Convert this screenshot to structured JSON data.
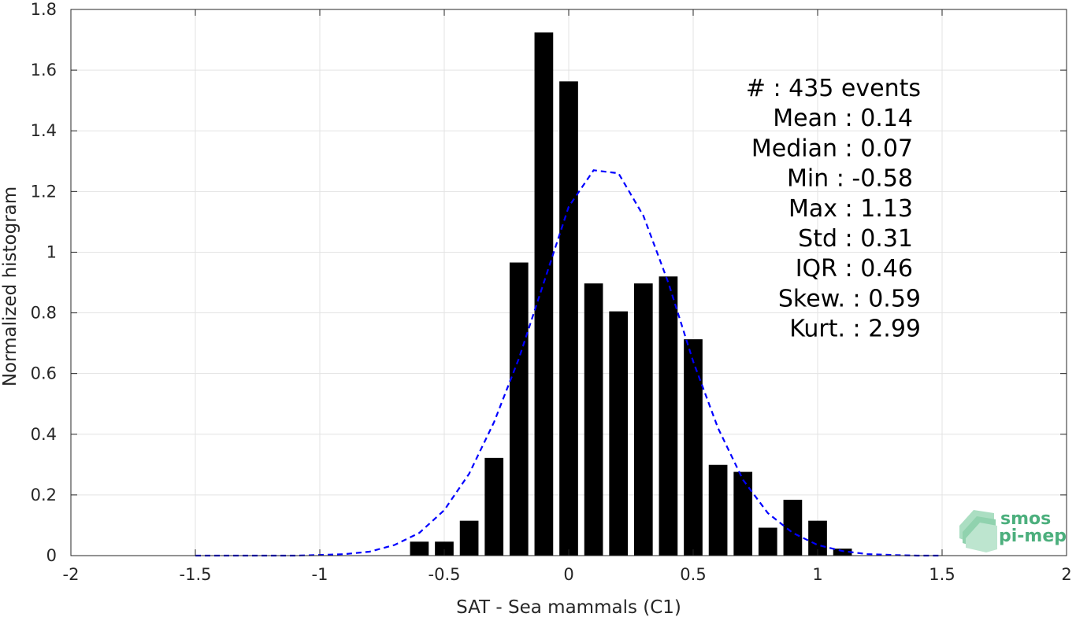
{
  "chart_data": {
    "type": "bar",
    "xlabel": "SAT - Sea mammals (C1)",
    "ylabel": "Normalized histogram",
    "xlim": [
      -2,
      2
    ],
    "ylim": [
      0,
      1.8
    ],
    "grid": true,
    "xticks": [
      {
        "value": -2,
        "label": "-2"
      },
      {
        "value": -1.5,
        "label": "-1.5"
      },
      {
        "value": -1,
        "label": "-1"
      },
      {
        "value": -0.5,
        "label": "-0.5"
      },
      {
        "value": 0,
        "label": "0"
      },
      {
        "value": 0.5,
        "label": "0.5"
      },
      {
        "value": 1,
        "label": "1"
      },
      {
        "value": 1.5,
        "label": "1.5"
      },
      {
        "value": 2,
        "label": "2"
      }
    ],
    "yticks": [
      {
        "value": 0,
        "label": "0"
      },
      {
        "value": 0.2,
        "label": "0.2"
      },
      {
        "value": 0.4,
        "label": "0.4"
      },
      {
        "value": 0.6,
        "label": "0.6"
      },
      {
        "value": 0.8,
        "label": "0.8"
      },
      {
        "value": 1,
        "label": "1"
      },
      {
        "value": 1.2,
        "label": "1.2"
      },
      {
        "value": 1.4,
        "label": "1.4"
      },
      {
        "value": 1.6,
        "label": "1.6"
      },
      {
        "value": 1.8,
        "label": "1.8"
      }
    ],
    "bar_color": "#000000",
    "bar_width": 0.075,
    "bars": [
      {
        "x": -0.6,
        "y": 0.046
      },
      {
        "x": -0.5,
        "y": 0.046
      },
      {
        "x": -0.4,
        "y": 0.115
      },
      {
        "x": -0.3,
        "y": 0.322
      },
      {
        "x": -0.2,
        "y": 0.966
      },
      {
        "x": -0.1,
        "y": 1.724
      },
      {
        "x": 0.0,
        "y": 1.563
      },
      {
        "x": 0.1,
        "y": 0.897
      },
      {
        "x": 0.2,
        "y": 0.805
      },
      {
        "x": 0.3,
        "y": 0.897
      },
      {
        "x": 0.4,
        "y": 0.92
      },
      {
        "x": 0.5,
        "y": 0.713
      },
      {
        "x": 0.6,
        "y": 0.299
      },
      {
        "x": 0.7,
        "y": 0.276
      },
      {
        "x": 0.8,
        "y": 0.092
      },
      {
        "x": 0.9,
        "y": 0.184
      },
      {
        "x": 1.0,
        "y": 0.115
      },
      {
        "x": 1.1,
        "y": 0.023
      }
    ],
    "fit_curve": {
      "color": "#0000ff",
      "style": "dashed",
      "points": [
        [
          -1.5,
          0.0
        ],
        [
          -1.4,
          0.0
        ],
        [
          -1.3,
          0.0
        ],
        [
          -1.2,
          0.0
        ],
        [
          -1.1,
          0.0
        ],
        [
          -1.0,
          0.002
        ],
        [
          -0.9,
          0.005
        ],
        [
          -0.8,
          0.013
        ],
        [
          -0.7,
          0.035
        ],
        [
          -0.6,
          0.075
        ],
        [
          -0.5,
          0.15
        ],
        [
          -0.4,
          0.27
        ],
        [
          -0.3,
          0.44
        ],
        [
          -0.2,
          0.65
        ],
        [
          -0.1,
          0.9
        ],
        [
          0.0,
          1.15
        ],
        [
          0.1,
          1.27
        ],
        [
          0.2,
          1.26
        ],
        [
          0.3,
          1.12
        ],
        [
          0.4,
          0.9
        ],
        [
          0.5,
          0.64
        ],
        [
          0.6,
          0.42
        ],
        [
          0.7,
          0.25
        ],
        [
          0.8,
          0.14
        ],
        [
          0.9,
          0.075
        ],
        [
          1.0,
          0.035
        ],
        [
          1.1,
          0.015
        ],
        [
          1.2,
          0.005
        ],
        [
          1.3,
          0.002
        ],
        [
          1.4,
          0.0
        ],
        [
          1.5,
          0.0
        ]
      ]
    },
    "stats": [
      {
        "label": "#  : 435 events",
        "anchor": "end-wide"
      },
      {
        "label": "Mean : 0.14",
        "anchor": "end"
      },
      {
        "label": "Median : 0.07",
        "anchor": "end"
      },
      {
        "label": "Min : -0.58",
        "anchor": "end"
      },
      {
        "label": "Max : 1.13",
        "anchor": "end"
      },
      {
        "label": "Std : 0.31",
        "anchor": "end"
      },
      {
        "label": "IQR : 0.46",
        "anchor": "end"
      },
      {
        "label": "Skew. : 0.59",
        "anchor": "end-wide"
      },
      {
        "label": "Kurt. : 2.99",
        "anchor": "end-wide"
      }
    ],
    "logo": {
      "line1": "smos",
      "line2": "pi-mep",
      "color": "#4caf7d"
    }
  }
}
